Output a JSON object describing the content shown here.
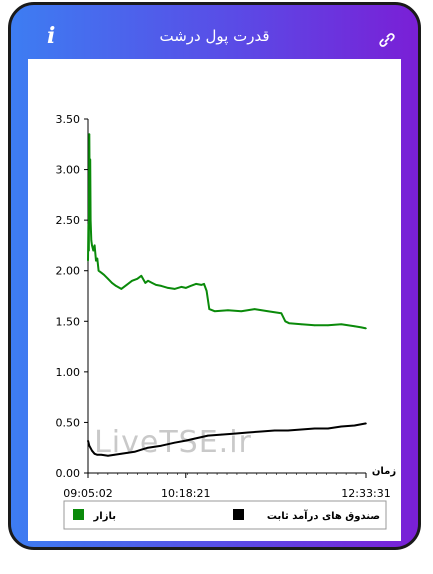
{
  "header": {
    "title": "قدرت پول درشت",
    "info_icon": "info-icon",
    "link_icon": "link-icon"
  },
  "colors": {
    "gradient_start": "#3d7df2",
    "gradient_end": "#7a1fd6",
    "market_series": "#0a8a0a",
    "fund_series": "#000000"
  },
  "watermark": "LiveTSE.ir",
  "chart_data": {
    "type": "line",
    "xlabel": "زمان",
    "ylabel": "",
    "ylim": [
      0,
      3.5
    ],
    "yticks": [
      "0.00",
      "0.50",
      "1.00",
      "1.50",
      "2.00",
      "2.50",
      "3.00",
      "3.50"
    ],
    "xticks": [
      "09:05:02",
      "10:18:21",
      "12:33:31"
    ],
    "grid": false,
    "legend_position": "bottom",
    "series": [
      {
        "name": "بازار",
        "color": "#0a8a0a",
        "x": [
          "09:05:02",
          "09:05:20",
          "09:05:40",
          "09:06:00",
          "09:06:20",
          "09:06:40",
          "09:07:00",
          "09:07:30",
          "09:08:00",
          "09:09:00",
          "09:10:00",
          "09:11:00",
          "09:12:00",
          "09:13:00",
          "09:15:00",
          "09:17:00",
          "09:20:00",
          "09:23:00",
          "09:26:00",
          "09:30:00",
          "09:34:00",
          "09:38:00",
          "09:42:00",
          "09:45:00",
          "09:48:00",
          "09:50:00",
          "09:53:00",
          "09:56:00",
          "10:00:00",
          "10:05:00",
          "10:10:00",
          "10:15:00",
          "10:18:21",
          "10:22:00",
          "10:26:00",
          "10:30:00",
          "10:32:00",
          "10:34:00",
          "10:36:00",
          "10:40:00",
          "10:50:00",
          "11:00:00",
          "11:10:00",
          "11:20:00",
          "11:30:00",
          "11:33:00",
          "11:36:00",
          "11:45:00",
          "11:55:00",
          "12:05:00",
          "12:15:00",
          "12:25:00",
          "12:30:00",
          "12:33:31"
        ],
        "y": [
          2.1,
          2.45,
          2.2,
          3.35,
          2.7,
          3.1,
          2.5,
          2.3,
          2.25,
          2.2,
          2.25,
          2.1,
          2.12,
          2.0,
          1.98,
          1.96,
          1.92,
          1.88,
          1.85,
          1.82,
          1.86,
          1.9,
          1.92,
          1.95,
          1.88,
          1.9,
          1.88,
          1.86,
          1.85,
          1.83,
          1.82,
          1.84,
          1.83,
          1.85,
          1.87,
          1.86,
          1.87,
          1.8,
          1.62,
          1.6,
          1.61,
          1.6,
          1.62,
          1.6,
          1.58,
          1.5,
          1.48,
          1.47,
          1.46,
          1.46,
          1.47,
          1.45,
          1.44,
          1.43
        ]
      },
      {
        "name": "صندوق های درآمد ثابت",
        "color": "#000000",
        "x": [
          "09:05:02",
          "09:06:00",
          "09:08:00",
          "09:10:00",
          "09:12:00",
          "09:15:00",
          "09:20:00",
          "09:25:00",
          "09:30:00",
          "09:35:00",
          "09:40:00",
          "09:45:00",
          "09:50:00",
          "09:55:00",
          "10:00:00",
          "10:10:00",
          "10:18:21",
          "10:25:00",
          "10:35:00",
          "10:45:00",
          "10:55:00",
          "11:05:00",
          "11:15:00",
          "11:25:00",
          "11:35:00",
          "11:45:00",
          "11:55:00",
          "12:05:00",
          "12:15:00",
          "12:25:00",
          "12:33:31"
        ],
        "y": [
          0.32,
          0.27,
          0.22,
          0.19,
          0.18,
          0.18,
          0.17,
          0.18,
          0.19,
          0.2,
          0.21,
          0.23,
          0.25,
          0.26,
          0.27,
          0.3,
          0.32,
          0.34,
          0.37,
          0.38,
          0.39,
          0.4,
          0.41,
          0.42,
          0.42,
          0.43,
          0.44,
          0.44,
          0.46,
          0.47,
          0.49
        ]
      }
    ]
  }
}
